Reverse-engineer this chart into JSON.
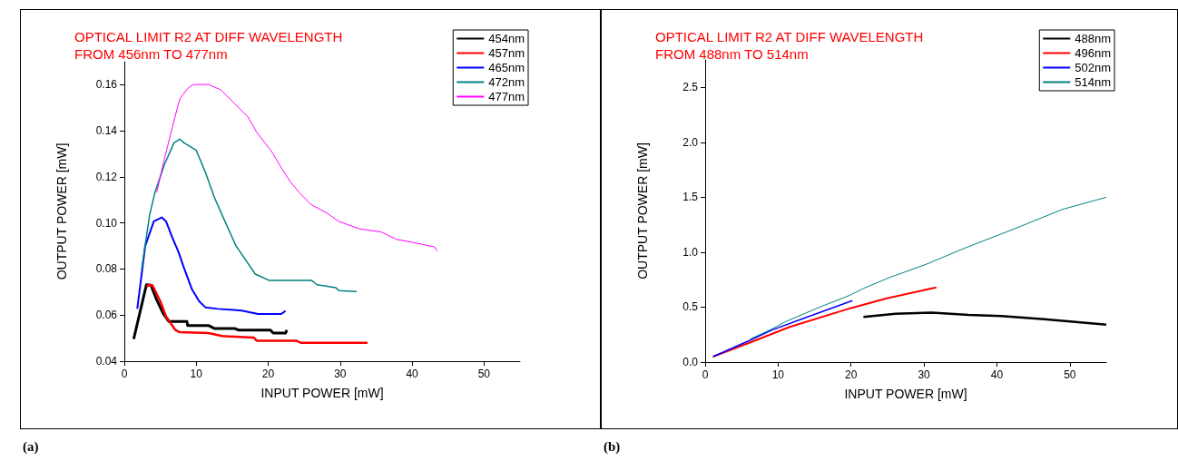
{
  "chart_data": [
    {
      "type": "line",
      "title": "OPTICAL LIMIT R2 AT DIFF WAVELENGTH\nFROM 456nm TO 477nm",
      "xlabel": "INPUT POWER [mW]",
      "ylabel": "OUTPUT POWER [mW]",
      "annotations": [
        "(a)"
      ],
      "xlim": [
        0,
        55
      ],
      "xticks": [
        0,
        10,
        20,
        30,
        40,
        50
      ],
      "ylim": [
        0.04,
        0.17
      ],
      "yticks": [
        {
          "value": 0.04,
          "label": "0.04"
        },
        {
          "value": 0.06,
          "label": "0.06"
        },
        {
          "value": 0.08,
          "label": "0.08"
        },
        {
          "value": 0.1,
          "label": "0.10"
        },
        {
          "value": 0.12,
          "label": "0.12"
        },
        {
          "value": 0.14,
          "label": "0.14"
        },
        {
          "value": 0.16,
          "label": "0.16"
        }
      ],
      "grid": false,
      "legend": "top right",
      "marker": "none",
      "line_style": "solid",
      "series": [
        {
          "name": "454nm",
          "color": "#000000",
          "x": [
            1.3,
            3.07,
            3.7,
            4.5,
            5.4,
            6.2,
            8.7,
            8.8,
            11.7,
            12.5,
            15.3,
            15.9,
            20.3,
            20.7,
            22.4,
            22.6
          ],
          "values": [
            0.0496,
            0.0732,
            0.073,
            0.0666,
            0.0607,
            0.0572,
            0.0572,
            0.0555,
            0.0555,
            0.0542,
            0.0542,
            0.0535,
            0.0535,
            0.0522,
            0.0522,
            0.0535
          ]
        },
        {
          "name": "457nm",
          "color": "#ff0000",
          "x": [
            3.07,
            3.5,
            3.9,
            5.0,
            5.8,
            7.1,
            7.7,
            11.7,
            13.6,
            18.0,
            18.4,
            23.9,
            24.5,
            33.8
          ],
          "values": [
            0.0725,
            0.073,
            0.073,
            0.066,
            0.0594,
            0.0535,
            0.0526,
            0.0522,
            0.0509,
            0.0502,
            0.0489,
            0.0489,
            0.048,
            0.048
          ]
        },
        {
          "name": "465nm",
          "color": "#0000ff",
          "x": [
            1.8,
            2.9,
            4.1,
            5.2,
            5.8,
            6.6,
            7.5,
            8.3,
            9.4,
            10.4,
            11.3,
            13.0,
            16.3,
            18.6,
            21.8,
            22.4
          ],
          "values": [
            0.0627,
            0.09,
            0.1007,
            0.1024,
            0.1007,
            0.0942,
            0.0876,
            0.0804,
            0.0712,
            0.066,
            0.0633,
            0.0627,
            0.062,
            0.0605,
            0.0605,
            0.0618
          ]
        },
        {
          "name": "472nm",
          "color": "#008080",
          "x": [
            2.4,
            3.5,
            4.3,
            5.6,
            6.9,
            7.7,
            8.3,
            10.0,
            11.3,
            12.5,
            13.8,
            15.5,
            17.2,
            18.2,
            20.1,
            26.0,
            26.8,
            29.4,
            29.8,
            32.3
          ],
          "values": [
            0.0797,
            0.1033,
            0.1138,
            0.1256,
            0.1348,
            0.1364,
            0.1348,
            0.1315,
            0.1217,
            0.1112,
            0.102,
            0.0902,
            0.0824,
            0.0778,
            0.0751,
            0.0751,
            0.0732,
            0.0719,
            0.0706,
            0.0702
          ]
        },
        {
          "name": "477nm",
          "color": "#ff00ff",
          "x": [
            4.5,
            5.4,
            6.6,
            7.7,
            8.8,
            9.6,
            11.7,
            13.4,
            15.3,
            17.2,
            18.4,
            20.5,
            22.0,
            23.1,
            24.3,
            26.0,
            28.1,
            29.8,
            32.7,
            35.7,
            37.8,
            40.5,
            43.1,
            43.5
          ],
          "values": [
            0.1132,
            0.1256,
            0.1407,
            0.1538,
            0.1584,
            0.1601,
            0.1601,
            0.1578,
            0.1519,
            0.146,
            0.1394,
            0.1309,
            0.123,
            0.1178,
            0.1132,
            0.1079,
            0.1044,
            0.1007,
            0.0974,
            0.0961,
            0.0929,
            0.0913,
            0.0896,
            0.0879
          ]
        }
      ]
    },
    {
      "type": "line",
      "title": "OPTICAL LIMIT R2 AT DIFF WAVELENGTH\nFROM 488nm TO 514nm",
      "xlabel": "INPUT POWER [mW]",
      "ylabel": "OUTPUT POWER [mW]",
      "annotations": [
        "(b)"
      ],
      "xlim": [
        0,
        55
      ],
      "xticks": [
        0,
        10,
        20,
        30,
        40,
        50
      ],
      "ylim": [
        0,
        2.75
      ],
      "yticks": [
        {
          "value": 0,
          "label": "0.0"
        },
        {
          "value": 0.5,
          "label": "0.5"
        },
        {
          "value": 1,
          "label": "1.0"
        },
        {
          "value": 1.5,
          "label": "1.5"
        },
        {
          "value": 2,
          "label": "2.0"
        },
        {
          "value": 2.5,
          "label": "2.5"
        }
      ],
      "grid": false,
      "legend": "top right",
      "marker": "none",
      "line_style": "solid",
      "series": [
        {
          "name": "488nm",
          "color": "#000000",
          "x": [
            21.7,
            26.1,
            31.1,
            36.1,
            40.6,
            46.5,
            55
          ],
          "values": [
            0.41,
            0.44,
            0.45,
            0.43,
            0.42,
            0.39,
            0.34
          ]
        },
        {
          "name": "496nm",
          "color": "#ff0000",
          "x": [
            1.08,
            6.2,
            11.6,
            19.9,
            24.9,
            31.7
          ],
          "values": [
            0.05,
            0.18,
            0.32,
            0.49,
            0.58,
            0.68
          ]
        },
        {
          "name": "502nm",
          "color": "#0000ff",
          "x": [
            1.08,
            6.2,
            9.1,
            13.6,
            20.2
          ],
          "values": [
            0.05,
            0.2,
            0.29,
            0.4,
            0.56
          ]
        },
        {
          "name": "514nm",
          "color": "#008080",
          "x": [
            6.2,
            9.1,
            11.1,
            15.7,
            19.9,
            21.7,
            25.3,
            30.3,
            35.7,
            42.3,
            49.0,
            55
          ],
          "values": [
            0.21,
            0.3,
            0.37,
            0.5,
            0.61,
            0.67,
            0.77,
            0.89,
            1.04,
            1.21,
            1.39,
            1.5
          ]
        }
      ]
    }
  ]
}
